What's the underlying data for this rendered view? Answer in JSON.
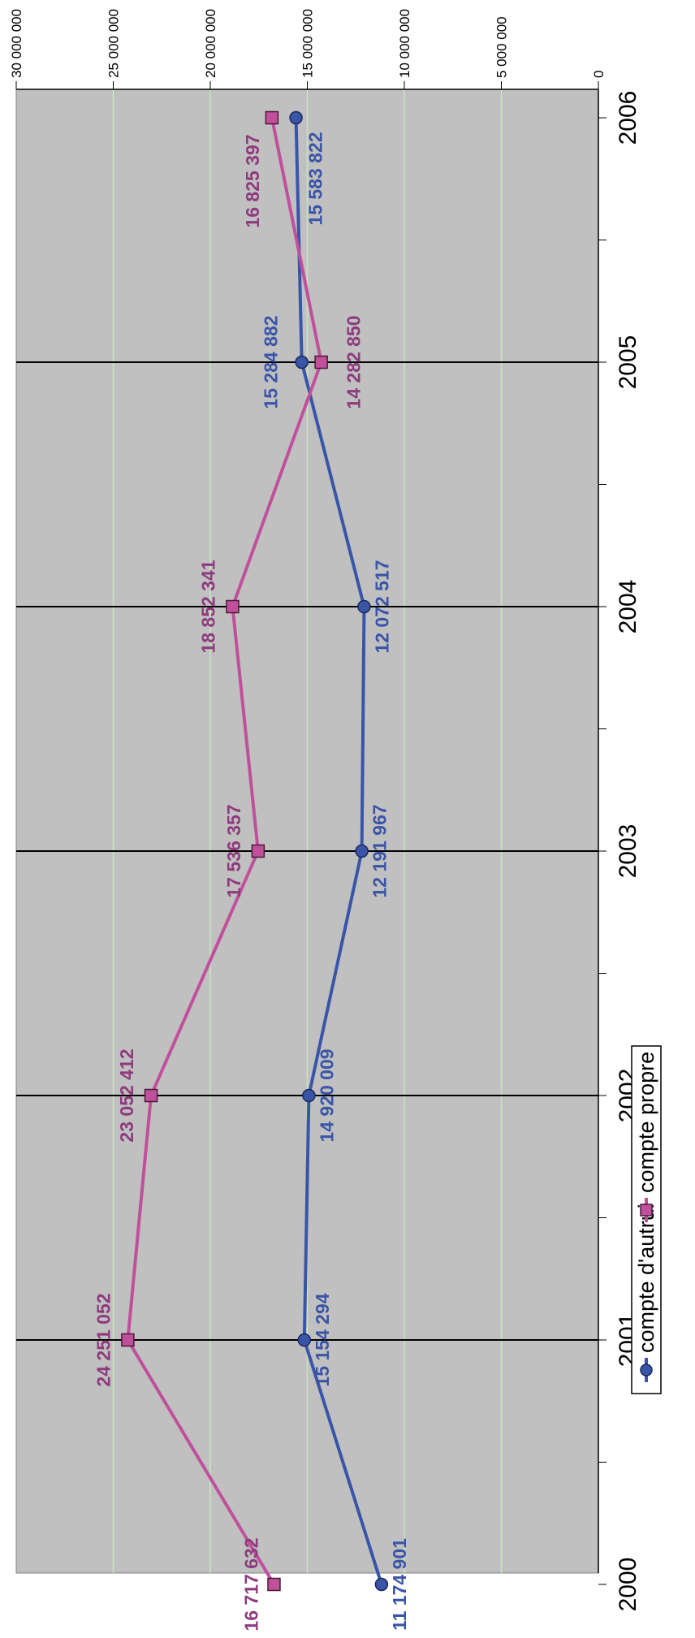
{
  "chart_data": {
    "type": "line",
    "title": "",
    "x": [
      "2000",
      "2001",
      "2002",
      "2003",
      "2004",
      "2005",
      "2006"
    ],
    "series": [
      {
        "name": "compte d'autrui",
        "color": "#3a55a8",
        "marker": "circle",
        "values": [
          11174901,
          15154294,
          14920009,
          12191967,
          12072517,
          15284882,
          15583822
        ],
        "labels": [
          "11 174 901",
          "15 154 294",
          "14 920 009",
          "12 191 967",
          "12 072 517",
          "15 284 882",
          "15 583 822"
        ]
      },
      {
        "name": "compte propre",
        "color": "#c0509b",
        "marker": "square",
        "values": [
          16717632,
          24251052,
          23052412,
          17536357,
          18852341,
          14282850,
          16825397
        ],
        "labels": [
          "16 717 632",
          "24 251 052",
          "23 052 412",
          "17 536 357",
          "18 852 341",
          "14 282 850",
          "16 825 397"
        ]
      }
    ],
    "ylim": [
      0,
      30000000
    ],
    "y_ticks": [
      0,
      5000000,
      10000000,
      15000000,
      20000000,
      25000000,
      30000000
    ],
    "y_tick_labels": [
      "0",
      "5 000 000",
      "10 000 000",
      "15 000 000",
      "20 000 000",
      "25 000 000",
      "30 000 000"
    ],
    "orientation": "rotated-90-clockwise",
    "plot_background": "#c0c0c0",
    "grid_color": "#c8e6c0",
    "legend_position": "bottom"
  }
}
